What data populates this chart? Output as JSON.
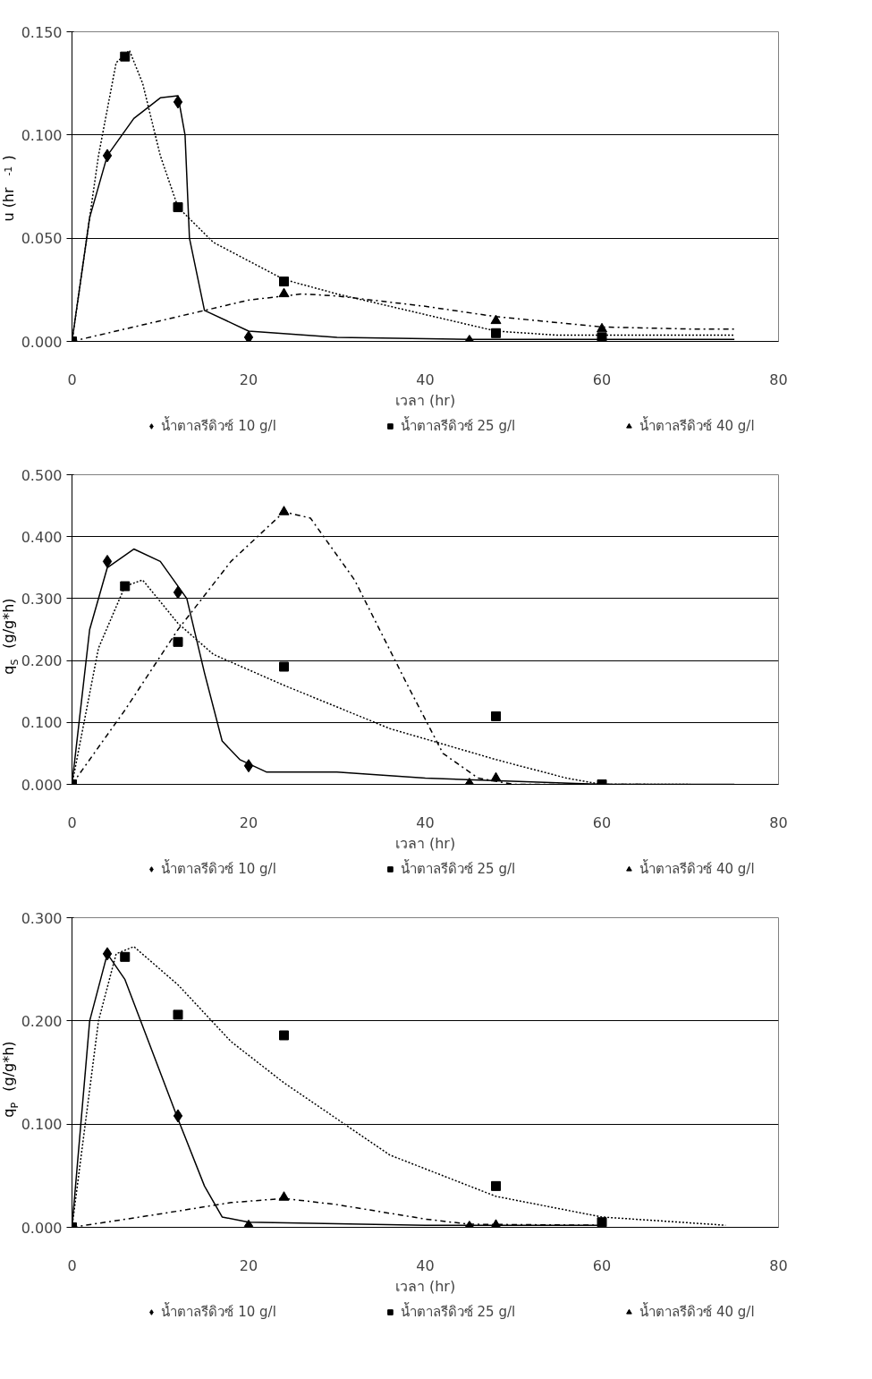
{
  "chart_data": [
    {
      "type": "scatter",
      "xlabel": "เวลา (hr)",
      "ylabel": "u (hr$^{-1}$)",
      "xlim": [
        0,
        80
      ],
      "xticks": [
        0,
        20,
        40,
        60,
        80
      ],
      "ylim": [
        0,
        0.15
      ],
      "yticks": [
        {
          "value": 0,
          "label": "0.000"
        },
        {
          "value": 0.05,
          "label": "0.050"
        },
        {
          "value": 0.1,
          "label": "0.100"
        },
        {
          "value": 0.15,
          "label": "0.150"
        }
      ],
      "grid": "y",
      "legend": "bottom",
      "series": [
        {
          "name": "น้ำตาลรีดิวซ์ 10 g/l",
          "color": "#000000",
          "marker": "diamond",
          "x": [
            4,
            12,
            20,
            45
          ],
          "values": [
            0.09,
            0.116,
            0.002,
            0.0
          ]
        },
        {
          "name": "น้ำตาลรีดิวซ์ 25 g/l",
          "color": "#000000",
          "marker": "square",
          "x": [
            0,
            6,
            12,
            24,
            48,
            60
          ],
          "values": [
            0,
            0.138,
            0.065,
            0.029,
            0.004,
            0.002
          ]
        },
        {
          "name": "น้ำตาลรีดิวซ์ 40 g/l",
          "color": "#000000",
          "marker": "triangle",
          "x": [
            24,
            48,
            60
          ],
          "values": [
            0.023,
            0.01,
            0.006
          ]
        },
        {
          "type": "line",
          "color": "#000000",
          "line_style": "solid",
          "x": [
            0,
            2,
            4,
            7,
            10,
            12,
            12.8,
            13.3,
            15,
            20,
            30,
            45,
            75
          ],
          "values": [
            0,
            0.06,
            0.09,
            0.108,
            0.118,
            0.119,
            0.1,
            0.05,
            0.015,
            0.005,
            0.002,
            0.001,
            0.001
          ]
        },
        {
          "type": "line",
          "color": "#000000",
          "line_style": "dotted",
          "x": [
            0,
            3,
            5,
            6.5,
            8,
            10,
            12,
            16,
            24,
            30,
            40,
            48,
            55,
            75
          ],
          "values": [
            0,
            0.09,
            0.135,
            0.141,
            0.125,
            0.09,
            0.065,
            0.048,
            0.03,
            0.023,
            0.013,
            0.005,
            0.003,
            0.003
          ]
        },
        {
          "type": "line",
          "color": "#000000",
          "line_style": "dashdot",
          "x": [
            0,
            10,
            20,
            26,
            30,
            40,
            48,
            60,
            70,
            75
          ],
          "values": [
            0,
            0.01,
            0.02,
            0.023,
            0.022,
            0.017,
            0.012,
            0.007,
            0.006,
            0.006
          ]
        }
      ]
    },
    {
      "type": "scatter",
      "xlabel": "เวลา (hr)",
      "ylabel": "q$_{S}$ (g/g*h)",
      "xlim": [
        0,
        80
      ],
      "xticks": [
        0,
        20,
        40,
        60,
        80
      ],
      "ylim": [
        0,
        0.5
      ],
      "yticks": [
        {
          "value": 0,
          "label": "0.000"
        },
        {
          "value": 0.1,
          "label": "0.100"
        },
        {
          "value": 0.2,
          "label": "0.200"
        },
        {
          "value": 0.3,
          "label": "0.300"
        },
        {
          "value": 0.4,
          "label": "0.400"
        },
        {
          "value": 0.5,
          "label": "0.500"
        }
      ],
      "grid": "y",
      "legend": "bottom",
      "series": [
        {
          "name": "น้ำตาลรีดิวซ์ 10 g/l",
          "color": "#000000",
          "marker": "diamond",
          "x": [
            4,
            12,
            20,
            45
          ],
          "values": [
            0.36,
            0.31,
            0.03,
            0.0
          ]
        },
        {
          "name": "น้ำตาลรีดิวซ์ 25 g/l",
          "color": "#000000",
          "marker": "square",
          "x": [
            0,
            6,
            12,
            24,
            48,
            60
          ],
          "values": [
            0,
            0.32,
            0.23,
            0.19,
            0.11,
            0
          ]
        },
        {
          "name": "น้ำตาลรีดิวซ์ 40 g/l",
          "color": "#000000",
          "marker": "triangle",
          "x": [
            24,
            48
          ],
          "values": [
            0.44,
            0.01
          ]
        },
        {
          "type": "line",
          "color": "#000000",
          "line_style": "solid",
          "x": [
            0,
            2,
            4,
            7,
            10,
            13,
            15,
            17,
            19,
            22,
            30,
            40,
            60,
            75
          ],
          "values": [
            0,
            0.25,
            0.35,
            0.38,
            0.36,
            0.3,
            0.18,
            0.07,
            0.04,
            0.02,
            0.02,
            0.01,
            0,
            0
          ]
        },
        {
          "type": "line",
          "color": "#000000",
          "line_style": "dotted",
          "x": [
            0,
            3,
            6,
            8,
            12,
            16,
            24,
            36,
            48,
            56,
            60,
            70
          ],
          "values": [
            0,
            0.22,
            0.32,
            0.33,
            0.26,
            0.21,
            0.16,
            0.09,
            0.04,
            0.01,
            0,
            0
          ]
        },
        {
          "type": "line",
          "color": "#000000",
          "line_style": "dashdot",
          "x": [
            0,
            6,
            12,
            18,
            24,
            27,
            32,
            38,
            42,
            46,
            50,
            65
          ],
          "values": [
            0,
            0.12,
            0.25,
            0.36,
            0.44,
            0.43,
            0.33,
            0.16,
            0.05,
            0.01,
            0,
            0
          ]
        }
      ]
    },
    {
      "type": "scatter",
      "xlabel": "เวลา (hr)",
      "ylabel": "q$_{P}$ (g/g*h)",
      "xlim": [
        0,
        80
      ],
      "xticks": [
        0,
        20,
        40,
        60,
        80
      ],
      "ylim": [
        0,
        0.3
      ],
      "yticks": [
        {
          "value": 0,
          "label": "0.000"
        },
        {
          "value": 0.1,
          "label": "0.100"
        },
        {
          "value": 0.2,
          "label": "0.200"
        },
        {
          "value": 0.3,
          "label": "0.300"
        }
      ],
      "grid": "y",
      "legend": "bottom",
      "series": [
        {
          "name": "น้ำตาลรีดิวซ์ 10 g/l",
          "color": "#000000",
          "marker": "diamond",
          "x": [
            4,
            12,
            20,
            45
          ],
          "values": [
            0.265,
            0.108,
            0.001,
            0.0
          ]
        },
        {
          "name": "น้ำตาลรีดิวซ์ 25 g/l",
          "color": "#000000",
          "marker": "square",
          "x": [
            0,
            6,
            12,
            24,
            48,
            60
          ],
          "values": [
            0,
            0.262,
            0.206,
            0.186,
            0.04,
            0.005
          ]
        },
        {
          "name": "น้ำตาลรีดิวซ์ 40 g/l",
          "color": "#000000",
          "marker": "triangle",
          "x": [
            24,
            48
          ],
          "values": [
            0.029,
            0.002
          ]
        },
        {
          "type": "line",
          "color": "#000000",
          "line_style": "solid",
          "x": [
            0,
            2,
            4,
            6,
            12,
            15,
            17,
            20,
            40,
            60
          ],
          "values": [
            0,
            0.2,
            0.265,
            0.24,
            0.105,
            0.04,
            0.01,
            0.005,
            0.002,
            0.002
          ]
        },
        {
          "type": "line",
          "color": "#000000",
          "line_style": "dotted",
          "x": [
            0,
            3,
            5,
            7,
            12,
            18,
            24,
            36,
            48,
            60,
            74
          ],
          "values": [
            0,
            0.2,
            0.265,
            0.272,
            0.235,
            0.18,
            0.14,
            0.07,
            0.03,
            0.01,
            0.002
          ]
        },
        {
          "type": "line",
          "color": "#000000",
          "line_style": "dashdot",
          "x": [
            0,
            10,
            18,
            24,
            30,
            40,
            45,
            60
          ],
          "values": [
            0,
            0.013,
            0.024,
            0.028,
            0.022,
            0.008,
            0.003,
            0.002
          ]
        }
      ]
    }
  ]
}
